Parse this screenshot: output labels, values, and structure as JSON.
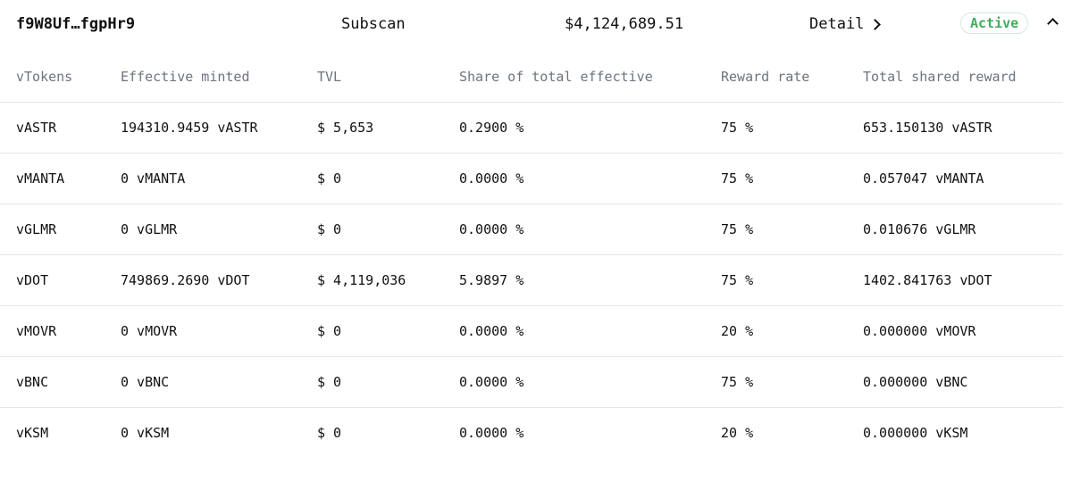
{
  "header": {
    "address": "f9W8Uf…fgpHr9",
    "explorer_link": "Subscan",
    "total_value": "$4,124,689.51",
    "detail_label": "Detail",
    "status": "Active",
    "status_color": "#3fae5d",
    "detail_icon": "chevron-right-icon",
    "collapse_icon": "chevron-up-icon"
  },
  "table": {
    "columns": [
      "vTokens",
      "Effective minted",
      "TVL",
      "Share of total effective",
      "Reward rate",
      "Total shared reward"
    ],
    "rows": [
      [
        "vASTR",
        "194310.9459 vASTR",
        "$ 5,653",
        "0.2900 %",
        "75 %",
        "653.150130 vASTR"
      ],
      [
        "vMANTA",
        "0 vMANTA",
        "$ 0",
        "0.0000 %",
        "75 %",
        "0.057047 vMANTA"
      ],
      [
        "vGLMR",
        "0 vGLMR",
        "$ 0",
        "0.0000 %",
        "75 %",
        "0.010676 vGLMR"
      ],
      [
        "vDOT",
        "749869.2690 vDOT",
        "$ 4,119,036",
        "5.9897 %",
        "75 %",
        "1402.841763 vDOT"
      ],
      [
        "vMOVR",
        "0 vMOVR",
        "$ 0",
        "0.0000 %",
        "20 %",
        "0.000000 vMOVR"
      ],
      [
        "vBNC",
        "0 vBNC",
        "$ 0",
        "0.0000 %",
        "75 %",
        "0.000000 vBNC"
      ],
      [
        "vKSM",
        "0 vKSM",
        "$ 0",
        "0.0000 %",
        "20 %",
        "0.000000 vKSM"
      ]
    ]
  }
}
